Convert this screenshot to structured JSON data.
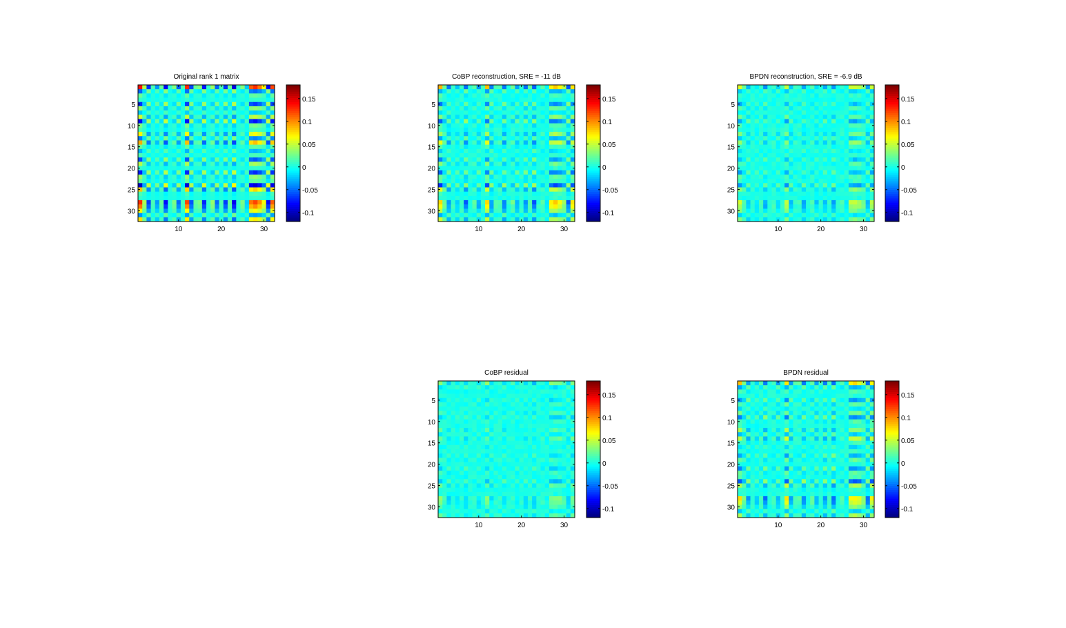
{
  "figure": {
    "background": "#ffffff"
  },
  "colormap": "jet",
  "chart_data": [
    {
      "type": "heatmap",
      "title": "Original rank 1 matrix",
      "matrix_size": [
        32,
        32
      ],
      "xticks": [
        10,
        20,
        30
      ],
      "yticks": [
        5,
        10,
        15,
        20,
        25,
        30
      ],
      "clim": [
        -0.12,
        0.18
      ],
      "colorbar_ticks": [
        -0.1,
        -0.05,
        0,
        0.05,
        0.1,
        0.15
      ],
      "row_factor": [
        0.9,
        -0.35,
        0.15,
        0.05,
        -0.45,
        0.25,
        -0.15,
        0.35,
        -0.55,
        0.2,
        0.1,
        0.45,
        -0.3,
        0.6,
        0.15,
        -0.2,
        0.1,
        -0.4,
        0.3,
        0.05,
        -0.5,
        0.25,
        0.15,
        -0.65,
        0.55,
        0.1,
        0.05,
        0.85,
        0.7,
        0.45,
        -0.25,
        0.5
      ],
      "col_factor": [
        0.9,
        0.3,
        -0.45,
        0.1,
        -0.25,
        0.15,
        -0.55,
        0.05,
        0.2,
        -0.35,
        0.1,
        0.85,
        -0.4,
        0.15,
        0.2,
        -0.5,
        0.05,
        0.25,
        -0.35,
        0.1,
        -0.45,
        0.15,
        -0.6,
        0.05,
        0.2,
        -0.15,
        0.75,
        0.85,
        0.7,
        0.45,
        -0.55,
        0.8
      ],
      "scale": 0.17,
      "offset": 0.0,
      "noise": 0.0,
      "seed": 1
    },
    {
      "type": "heatmap",
      "title": "CoBP reconstruction, SRE = -11 dB",
      "matrix_size": [
        32,
        32
      ],
      "xticks": [
        10,
        20,
        30
      ],
      "yticks": [
        5,
        10,
        15,
        20,
        25,
        30
      ],
      "clim": [
        -0.12,
        0.18
      ],
      "colorbar_ticks": [
        -0.1,
        -0.05,
        0,
        0.05,
        0.1,
        0.15
      ],
      "row_factor": [
        0.9,
        -0.35,
        0.15,
        0.05,
        -0.45,
        0.25,
        -0.15,
        0.35,
        -0.55,
        0.2,
        0.1,
        0.45,
        -0.3,
        0.6,
        0.15,
        -0.2,
        0.1,
        -0.4,
        0.3,
        0.05,
        -0.5,
        0.25,
        0.15,
        -0.65,
        0.55,
        0.1,
        0.05,
        0.85,
        0.7,
        0.45,
        -0.25,
        0.5
      ],
      "col_factor": [
        0.9,
        0.3,
        -0.45,
        0.1,
        -0.25,
        0.15,
        -0.55,
        0.05,
        0.2,
        -0.35,
        0.1,
        0.85,
        -0.4,
        0.15,
        0.2,
        -0.5,
        0.05,
        0.25,
        -0.35,
        0.1,
        -0.45,
        0.15,
        -0.6,
        0.05,
        0.2,
        -0.15,
        0.75,
        0.85,
        0.7,
        0.45,
        -0.55,
        0.8
      ],
      "scale": 0.11,
      "offset": 0.0,
      "noise": 0.006,
      "seed": 7
    },
    {
      "type": "heatmap",
      "title": "BPDN reconstruction, SRE = -6.9 dB",
      "matrix_size": [
        32,
        32
      ],
      "xticks": [
        10,
        20,
        30
      ],
      "yticks": [
        5,
        10,
        15,
        20,
        25,
        30
      ],
      "clim": [
        -0.12,
        0.18
      ],
      "colorbar_ticks": [
        -0.1,
        -0.05,
        0,
        0.05,
        0.1,
        0.15
      ],
      "row_factor": [
        0.9,
        -0.35,
        0.15,
        0.05,
        -0.45,
        0.25,
        -0.15,
        0.35,
        -0.55,
        0.2,
        0.1,
        0.45,
        -0.3,
        0.6,
        0.15,
        -0.2,
        0.1,
        -0.4,
        0.3,
        0.05,
        -0.5,
        0.25,
        0.15,
        -0.65,
        0.55,
        0.1,
        0.05,
        0.85,
        0.7,
        0.45,
        -0.25,
        0.5
      ],
      "col_factor": [
        0.9,
        0.3,
        -0.45,
        0.1,
        -0.25,
        0.15,
        -0.55,
        0.05,
        0.2,
        -0.35,
        0.1,
        0.85,
        -0.4,
        0.15,
        0.2,
        -0.5,
        0.05,
        0.25,
        -0.35,
        0.1,
        -0.45,
        0.15,
        -0.6,
        0.05,
        0.2,
        -0.15,
        0.75,
        0.85,
        0.7,
        0.45,
        -0.55,
        0.8
      ],
      "scale": 0.07,
      "offset": 0.0,
      "noise": 0.006,
      "seed": 13
    },
    {
      "type": "heatmap",
      "title": "CoBP residual",
      "matrix_size": [
        32,
        32
      ],
      "xticks": [
        10,
        20,
        30
      ],
      "yticks": [
        5,
        10,
        15,
        20,
        25,
        30
      ],
      "clim": [
        -0.12,
        0.18
      ],
      "colorbar_ticks": [
        -0.1,
        -0.05,
        0,
        0.05,
        0.1,
        0.15
      ],
      "row_factor": [
        0.9,
        -0.35,
        0.15,
        0.05,
        -0.45,
        0.25,
        -0.15,
        0.35,
        -0.55,
        0.2,
        0.1,
        0.45,
        -0.3,
        0.6,
        0.15,
        -0.2,
        0.1,
        -0.4,
        0.3,
        0.05,
        -0.5,
        0.25,
        0.15,
        -0.65,
        0.55,
        0.1,
        0.05,
        0.85,
        0.7,
        0.45,
        -0.25,
        0.5
      ],
      "col_factor": [
        0.9,
        0.3,
        -0.45,
        0.1,
        -0.25,
        0.15,
        -0.55,
        0.05,
        0.2,
        -0.35,
        0.1,
        0.85,
        -0.4,
        0.15,
        0.2,
        -0.5,
        0.05,
        0.25,
        -0.35,
        0.1,
        -0.45,
        0.15,
        -0.6,
        0.05,
        0.2,
        -0.15,
        0.75,
        0.85,
        0.7,
        0.45,
        -0.55,
        0.8
      ],
      "scale": 0.045,
      "offset": 0.0,
      "noise": 0.006,
      "seed": 21
    },
    {
      "type": "heatmap",
      "title": "BPDN residual",
      "matrix_size": [
        32,
        32
      ],
      "xticks": [
        10,
        20,
        30
      ],
      "yticks": [
        5,
        10,
        15,
        20,
        25,
        30
      ],
      "clim": [
        -0.12,
        0.18
      ],
      "colorbar_ticks": [
        -0.1,
        -0.05,
        0,
        0.05,
        0.1,
        0.15
      ],
      "row_factor": [
        0.9,
        -0.35,
        0.15,
        0.05,
        -0.45,
        0.25,
        -0.15,
        0.35,
        -0.55,
        0.2,
        0.1,
        0.45,
        -0.3,
        0.6,
        0.15,
        -0.2,
        0.1,
        -0.4,
        0.3,
        0.05,
        -0.5,
        0.25,
        0.15,
        -0.65,
        0.55,
        0.1,
        0.05,
        0.85,
        0.7,
        0.45,
        -0.25,
        0.5
      ],
      "col_factor": [
        0.9,
        0.3,
        -0.45,
        0.1,
        -0.25,
        0.15,
        -0.55,
        0.05,
        0.2,
        -0.35,
        0.1,
        0.85,
        -0.4,
        0.15,
        0.2,
        -0.5,
        0.05,
        0.25,
        -0.35,
        0.1,
        -0.45,
        0.15,
        -0.6,
        0.05,
        0.2,
        -0.15,
        0.75,
        0.85,
        0.7,
        0.45,
        -0.55,
        0.8
      ],
      "scale": 0.1,
      "offset": 0.0,
      "noise": 0.006,
      "seed": 29
    }
  ]
}
